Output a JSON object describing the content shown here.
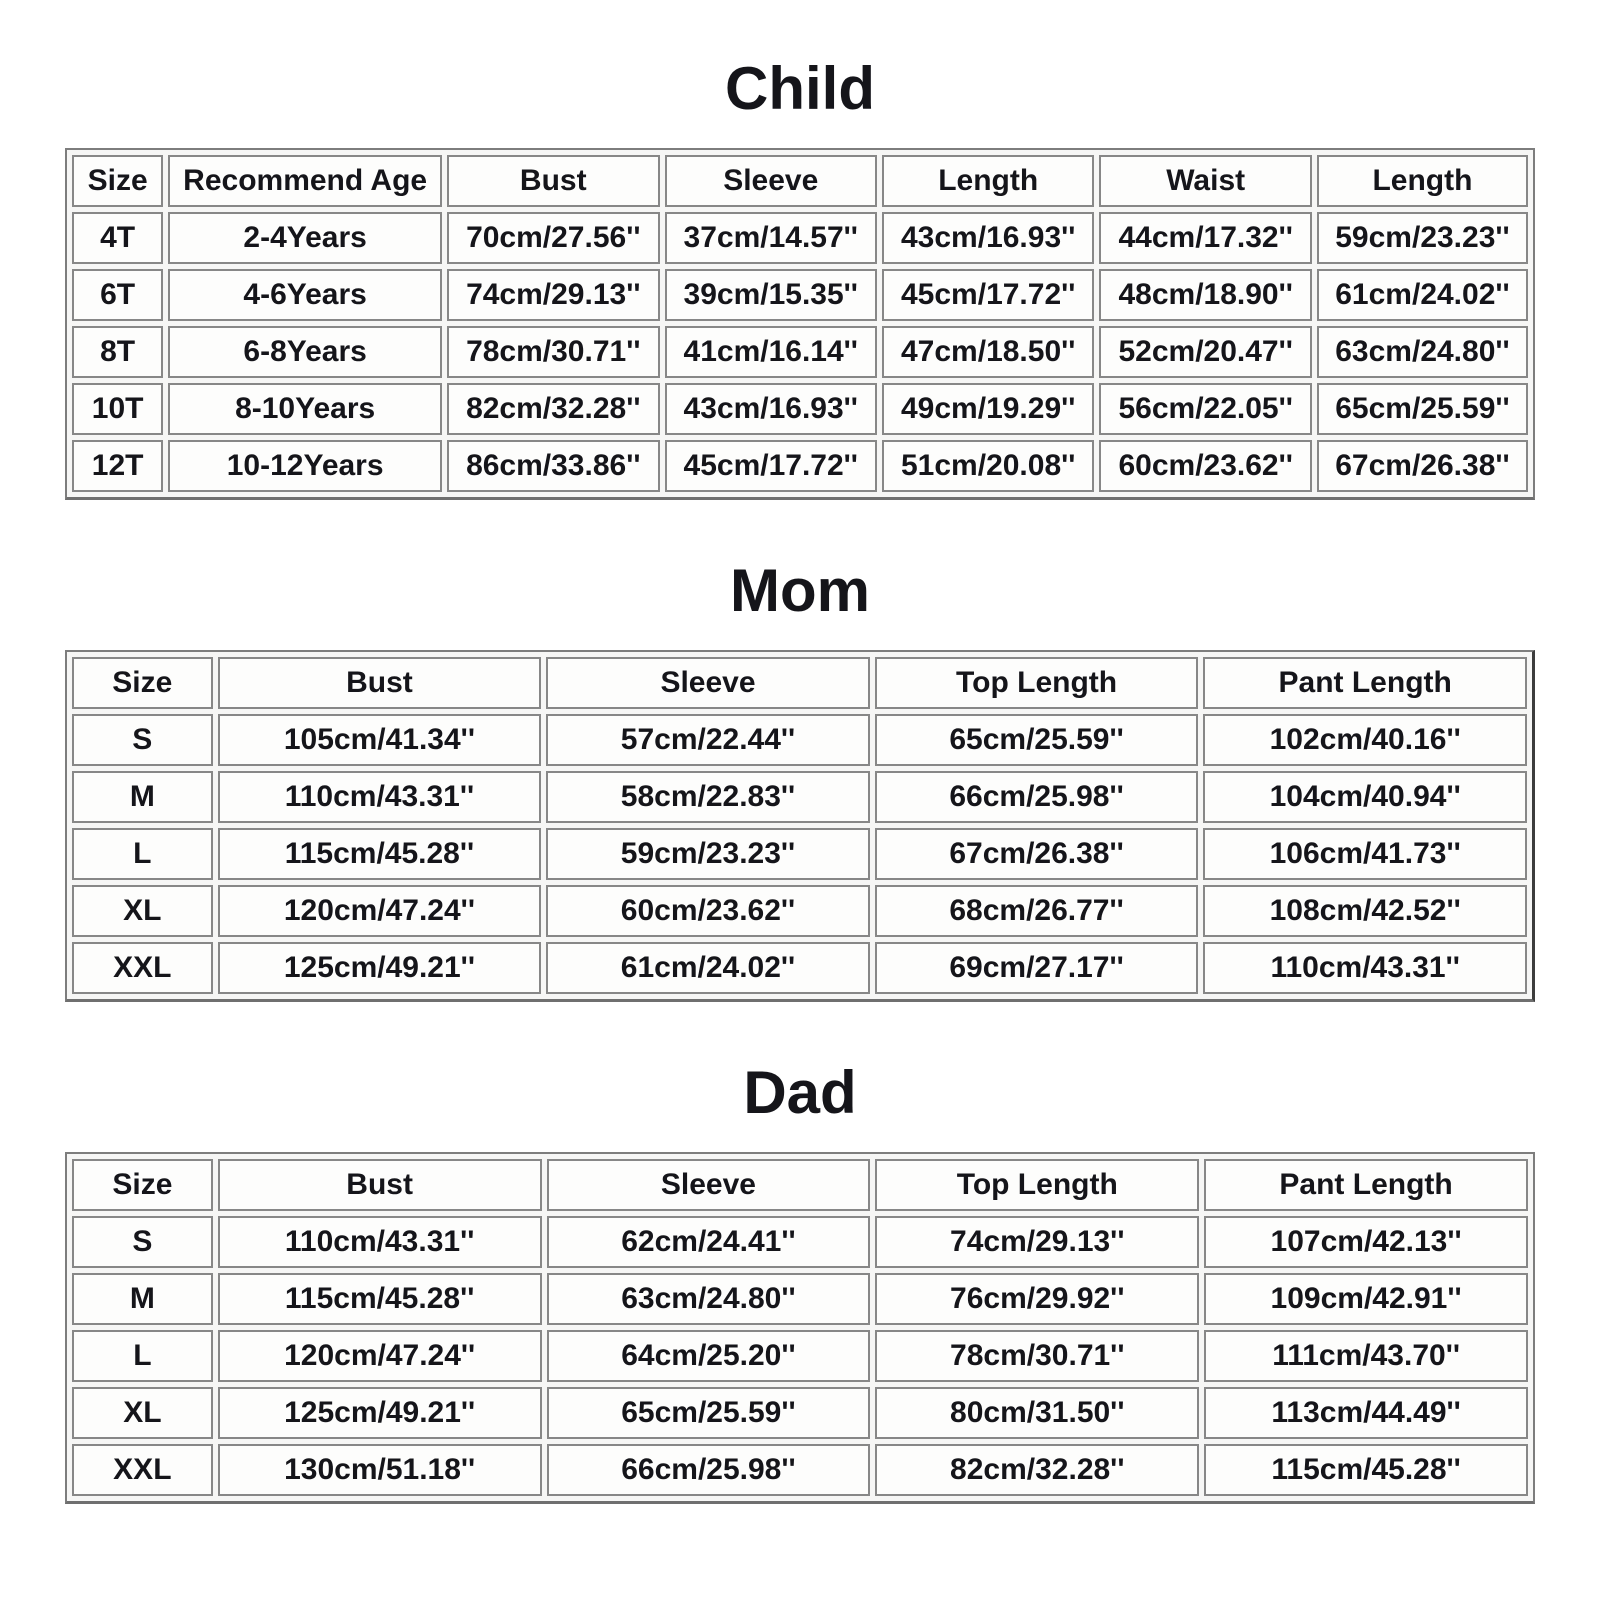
{
  "page": {
    "background_color": "#ffffff",
    "text_color": "#15151a",
    "border_color": "#7d7d7d"
  },
  "sections": [
    {
      "id": "child",
      "title": "Child",
      "columns": [
        "Size",
        "Recommend Age",
        "Bust",
        "Sleeve",
        "Length",
        "Waist",
        "Length"
      ],
      "rows": [
        [
          "4T",
          "2-4Years",
          "70cm/27.56''",
          "37cm/14.57''",
          "43cm/16.93''",
          "44cm/17.32''",
          "59cm/23.23''"
        ],
        [
          "6T",
          "4-6Years",
          "74cm/29.13''",
          "39cm/15.35''",
          "45cm/17.72''",
          "48cm/18.90''",
          "61cm/24.02''"
        ],
        [
          "8T",
          "6-8Years",
          "78cm/30.71''",
          "41cm/16.14''",
          "47cm/18.50''",
          "52cm/20.47''",
          "63cm/24.80''"
        ],
        [
          "10T",
          "8-10Years",
          "82cm/32.28''",
          "43cm/16.93''",
          "49cm/19.29''",
          "56cm/22.05''",
          "65cm/25.59''"
        ],
        [
          "12T",
          "10-12Years",
          "86cm/33.86''",
          "45cm/17.72''",
          "51cm/20.08''",
          "60cm/23.62''",
          "67cm/26.38''"
        ]
      ]
    },
    {
      "id": "mom",
      "title": "Mom",
      "columns": [
        "Size",
        "Bust",
        "Sleeve",
        "Top Length",
        "Pant Length"
      ],
      "rows": [
        [
          "S",
          "105cm/41.34''",
          "57cm/22.44''",
          "65cm/25.59''",
          "102cm/40.16''"
        ],
        [
          "M",
          "110cm/43.31''",
          "58cm/22.83''",
          "66cm/25.98''",
          "104cm/40.94''"
        ],
        [
          "L",
          "115cm/45.28''",
          "59cm/23.23''",
          "67cm/26.38''",
          "106cm/41.73''"
        ],
        [
          "XL",
          "120cm/47.24''",
          "60cm/23.62''",
          "68cm/26.77''",
          "108cm/42.52''"
        ],
        [
          "XXL",
          "125cm/49.21''",
          "61cm/24.02''",
          "69cm/27.17''",
          "110cm/43.31''"
        ]
      ]
    },
    {
      "id": "dad",
      "title": "Dad",
      "columns": [
        "Size",
        "Bust",
        "Sleeve",
        "Top Length",
        "Pant Length"
      ],
      "rows": [
        [
          "S",
          "110cm/43.31''",
          "62cm/24.41''",
          "74cm/29.13''",
          "107cm/42.13''"
        ],
        [
          "M",
          "115cm/45.28''",
          "63cm/24.80''",
          "76cm/29.92''",
          "109cm/42.91''"
        ],
        [
          "L",
          "120cm/47.24''",
          "64cm/25.20''",
          "78cm/30.71''",
          "111cm/43.70''"
        ],
        [
          "XL",
          "125cm/49.21''",
          "65cm/25.59''",
          "80cm/31.50''",
          "113cm/44.49''"
        ],
        [
          "XXL",
          "130cm/51.18''",
          "66cm/25.98''",
          "82cm/32.28''",
          "115cm/45.28''"
        ]
      ]
    }
  ]
}
